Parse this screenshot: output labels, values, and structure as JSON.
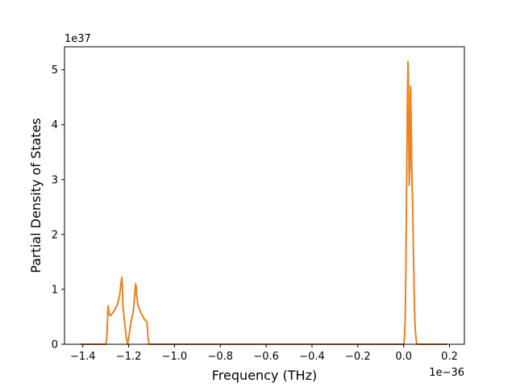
{
  "chart_data": {
    "type": "line",
    "title": "",
    "xlabel": "Frequency (THz)",
    "ylabel": "Partial Density of States",
    "x_offset_label": "1e−36",
    "y_offset_label": "1e37",
    "x_unit_scale": "1e-36",
    "y_unit_scale": "1e37",
    "xlim": [
      -1.48,
      0.265
    ],
    "ylim": [
      0,
      5.42
    ],
    "x_ticks": [
      -1.4,
      -1.2,
      -1.0,
      -0.8,
      -0.6,
      -0.4,
      -0.2,
      0.0,
      0.2
    ],
    "x_tick_labels": [
      "−1.4",
      "−1.2",
      "−1.0",
      "−0.8",
      "−0.6",
      "−0.4",
      "−0.2",
      "0.0",
      "0.2"
    ],
    "y_ticks": [
      0,
      1,
      2,
      3,
      4,
      5
    ],
    "y_tick_labels": [
      "0",
      "1",
      "2",
      "3",
      "4",
      "5"
    ],
    "grid": false,
    "legend": "none",
    "series": [
      {
        "color": "#1f77b4",
        "x": [
          -1.41,
          -1.3,
          -1.295,
          -1.29,
          -1.285,
          -1.28,
          -1.27,
          -1.26,
          -1.25,
          -1.24,
          -1.235,
          -1.23,
          -1.228,
          -1.225,
          -1.22,
          -1.215,
          -1.21,
          -1.205,
          -1.2,
          -1.195,
          -1.19,
          -1.18,
          -1.175,
          -1.17,
          -1.167,
          -1.165,
          -1.16,
          -1.15,
          -1.14,
          -1.13,
          -1.125,
          -1.12,
          -1.115,
          -1.11,
          0.0,
          0.003,
          0.007,
          0.01,
          0.013,
          0.016,
          0.019,
          0.021,
          0.024,
          0.027,
          0.03,
          0.033,
          0.036,
          0.039,
          0.043,
          0.047,
          0.05,
          0.054,
          0.057,
          0.06,
          0.19
        ],
        "y": [
          0,
          0,
          0.12,
          0.7,
          0.55,
          0.52,
          0.57,
          0.63,
          0.72,
          0.88,
          1.05,
          1.22,
          1.1,
          0.7,
          0.48,
          0.3,
          0.12,
          0.0,
          0.1,
          0.25,
          0.4,
          0.6,
          0.82,
          1.1,
          1.05,
          0.9,
          0.72,
          0.6,
          0.52,
          0.45,
          0.43,
          0.4,
          0.1,
          0,
          0,
          0.08,
          0.5,
          1.5,
          3.0,
          4.3,
          5.15,
          4.6,
          2.9,
          3.2,
          4.7,
          4.0,
          3.0,
          2.6,
          1.6,
          0.7,
          0.3,
          0.1,
          0.02,
          0,
          0
        ]
      },
      {
        "color": "#ff7f0e",
        "x": [
          -1.41,
          -1.3,
          -1.295,
          -1.29,
          -1.285,
          -1.28,
          -1.27,
          -1.26,
          -1.25,
          -1.24,
          -1.235,
          -1.23,
          -1.228,
          -1.225,
          -1.22,
          -1.215,
          -1.21,
          -1.205,
          -1.2,
          -1.195,
          -1.19,
          -1.18,
          -1.175,
          -1.17,
          -1.167,
          -1.165,
          -1.16,
          -1.15,
          -1.14,
          -1.13,
          -1.125,
          -1.12,
          -1.115,
          -1.11,
          0.0,
          0.003,
          0.007,
          0.01,
          0.013,
          0.016,
          0.019,
          0.021,
          0.024,
          0.027,
          0.03,
          0.033,
          0.036,
          0.039,
          0.043,
          0.047,
          0.05,
          0.054,
          0.057,
          0.06,
          0.19
        ],
        "y": [
          0,
          0,
          0.12,
          0.7,
          0.55,
          0.52,
          0.57,
          0.63,
          0.72,
          0.88,
          1.05,
          1.22,
          1.1,
          0.7,
          0.48,
          0.3,
          0.12,
          0.0,
          0.1,
          0.25,
          0.4,
          0.6,
          0.82,
          1.1,
          1.05,
          0.9,
          0.72,
          0.6,
          0.52,
          0.45,
          0.43,
          0.4,
          0.1,
          0,
          0,
          0.08,
          0.5,
          1.5,
          3.0,
          4.3,
          5.15,
          4.6,
          2.9,
          3.2,
          4.7,
          4.0,
          3.0,
          2.6,
          1.6,
          0.7,
          0.3,
          0.1,
          0.02,
          0,
          0
        ]
      }
    ]
  }
}
